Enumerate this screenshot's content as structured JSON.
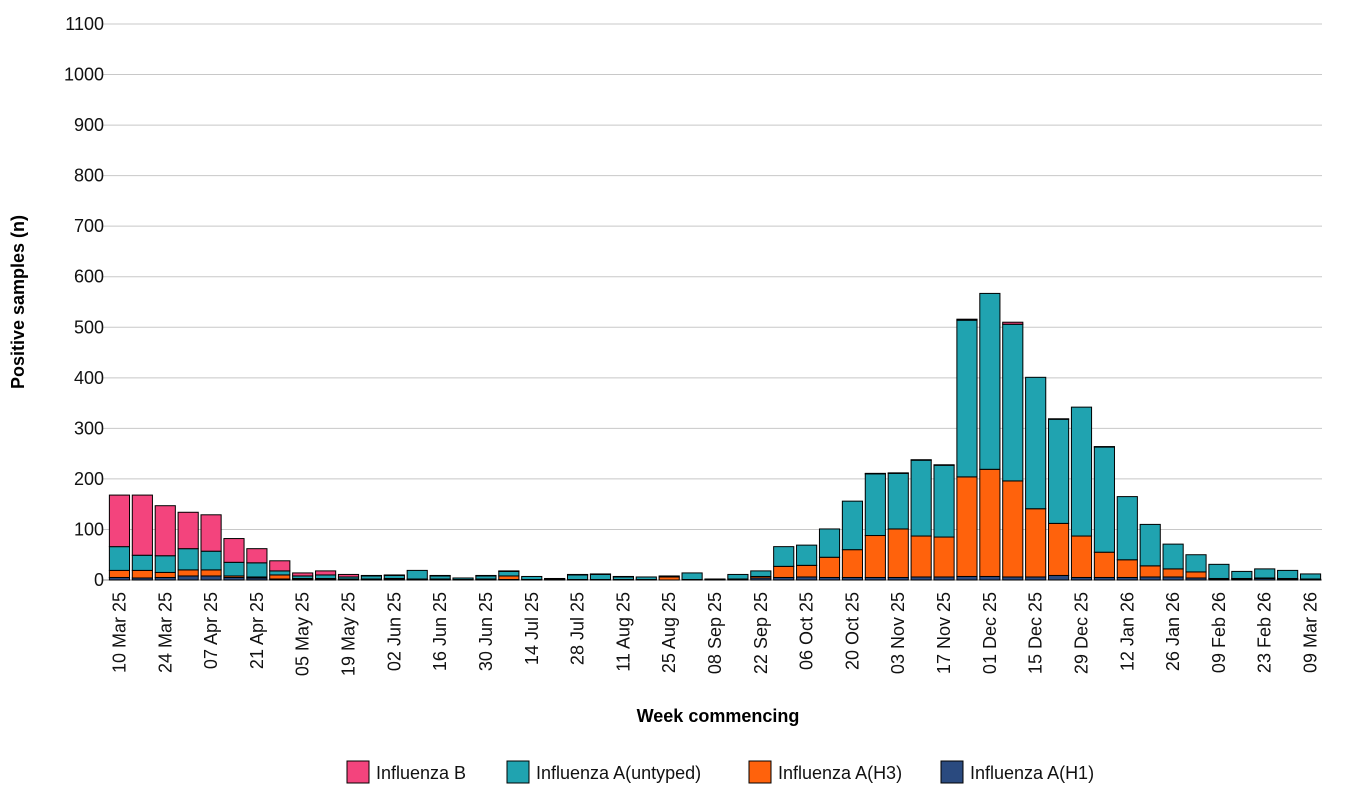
{
  "chart_data": {
    "type": "bar",
    "stacked": true,
    "title": "",
    "xlabel": "Week commencing",
    "ylabel": "Positive samples (n)",
    "ylim": [
      0,
      1100
    ],
    "yticks": [
      0,
      100,
      200,
      300,
      400,
      500,
      600,
      700,
      800,
      900,
      1000,
      1100
    ],
    "grid": "horizontal",
    "legend_position": "bottom-center",
    "legend_order": [
      "Influenza B",
      "Influenza A(untyped)",
      "Influenza A(H3)",
      "Influenza A(H1)"
    ],
    "categories": [
      "10 Mar 25",
      "17 Mar 25",
      "24 Mar 25",
      "31 Mar 25",
      "07 Apr 25",
      "14 Apr 25",
      "21 Apr 25",
      "28 Apr 25",
      "05 May 25",
      "12 May 25",
      "19 May 25",
      "26 May 25",
      "02 Jun 25",
      "09 Jun 25",
      "16 Jun 25",
      "23 Jun 25",
      "30 Jun 25",
      "07 Jul 25",
      "14 Jul 25",
      "21 Jul 25",
      "28 Jul 25",
      "04 Aug 25",
      "11 Aug 25",
      "18 Aug 25",
      "25 Aug 25",
      "01 Sep 25",
      "08 Sep 25",
      "15 Sep 25",
      "22 Sep 25",
      "29 Sep 25",
      "06 Oct 25",
      "13 Oct 25",
      "20 Oct 25",
      "27 Oct 25",
      "03 Nov 25",
      "10 Nov 25",
      "17 Nov 25",
      "24 Nov 25",
      "01 Dec 25",
      "08 Dec 25",
      "15 Dec 25",
      "22 Dec 25",
      "29 Dec 25",
      "05 Jan 26",
      "12 Jan 26",
      "19 Jan 26",
      "26 Jan 26",
      "02 Feb 26",
      "09 Feb 26",
      "16 Feb 26",
      "23 Feb 26",
      "02 Mar 26",
      "09 Mar 26"
    ],
    "tick_labels": [
      "10 Mar 25",
      "24 Mar 25",
      "07 Apr 25",
      "21 Apr 25",
      "05 May 25",
      "19 May 25",
      "02 Jun 25",
      "16 Jun 25",
      "30 Jun 25",
      "14 Jul 25",
      "28 Jul 25",
      "11 Aug 25",
      "25 Aug 25",
      "08 Sep 25",
      "22 Sep 25",
      "06 Oct 25",
      "20 Oct 25",
      "03 Nov 25",
      "17 Nov 25",
      "01 Dec 25",
      "15 Dec 25",
      "29 Dec 25",
      "12 Jan 26",
      "26 Jan 26",
      "09 Feb 26",
      "23 Feb 26",
      "09 Mar 26"
    ],
    "series": [
      {
        "name": "Influenza A(H1)",
        "color": "#2a4a7f",
        "values": [
          5,
          4,
          5,
          8,
          8,
          5,
          4,
          2,
          2,
          2,
          1,
          1,
          2,
          1,
          1,
          1,
          1,
          1,
          0,
          1,
          1,
          1,
          0,
          0,
          0,
          0,
          0,
          0,
          4,
          5,
          6,
          5,
          5,
          5,
          5,
          6,
          6,
          7,
          7,
          6,
          6,
          9,
          5,
          5,
          5,
          6,
          6,
          4,
          2,
          2,
          3,
          2,
          1
        ]
      },
      {
        "name": "Influenza A(H3)",
        "color": "#ff620c",
        "values": [
          14,
          15,
          10,
          12,
          12,
          3,
          2,
          8,
          1,
          1,
          1,
          1,
          1,
          1,
          1,
          0,
          1,
          7,
          1,
          1,
          0,
          0,
          1,
          1,
          6,
          1,
          1,
          2,
          3,
          22,
          23,
          40,
          55,
          83,
          96,
          81,
          79,
          197,
          212,
          190,
          135,
          103,
          82,
          50,
          35,
          22,
          16,
          12,
          1,
          1,
          1,
          1,
          1
        ]
      },
      {
        "name": "Influenza A(untyped)",
        "color": "#20a3b0",
        "values": [
          47,
          30,
          33,
          42,
          37,
          27,
          28,
          8,
          5,
          7,
          4,
          6,
          6,
          17,
          6,
          3,
          6,
          9,
          6,
          1,
          9,
          10,
          5,
          5,
          2,
          13,
          1,
          9,
          11,
          39,
          40,
          56,
          96,
          122,
          110,
          150,
          142,
          310,
          348,
          310,
          260,
          206,
          255,
          208,
          125,
          82,
          49,
          34,
          28,
          14,
          18,
          16,
          10
        ]
      },
      {
        "name": "Influenza B",
        "color": "#f3447d",
        "values": [
          102,
          119,
          99,
          72,
          72,
          47,
          28,
          20,
          6,
          8,
          5,
          1,
          1,
          0,
          1,
          0,
          1,
          1,
          0,
          0,
          1,
          1,
          1,
          0,
          0,
          0,
          0,
          0,
          0,
          0,
          0,
          0,
          0,
          1,
          1,
          1,
          1,
          2,
          0,
          4,
          0,
          1,
          0,
          1,
          0,
          0,
          0,
          0,
          0,
          0,
          0,
          0,
          0
        ]
      }
    ]
  }
}
